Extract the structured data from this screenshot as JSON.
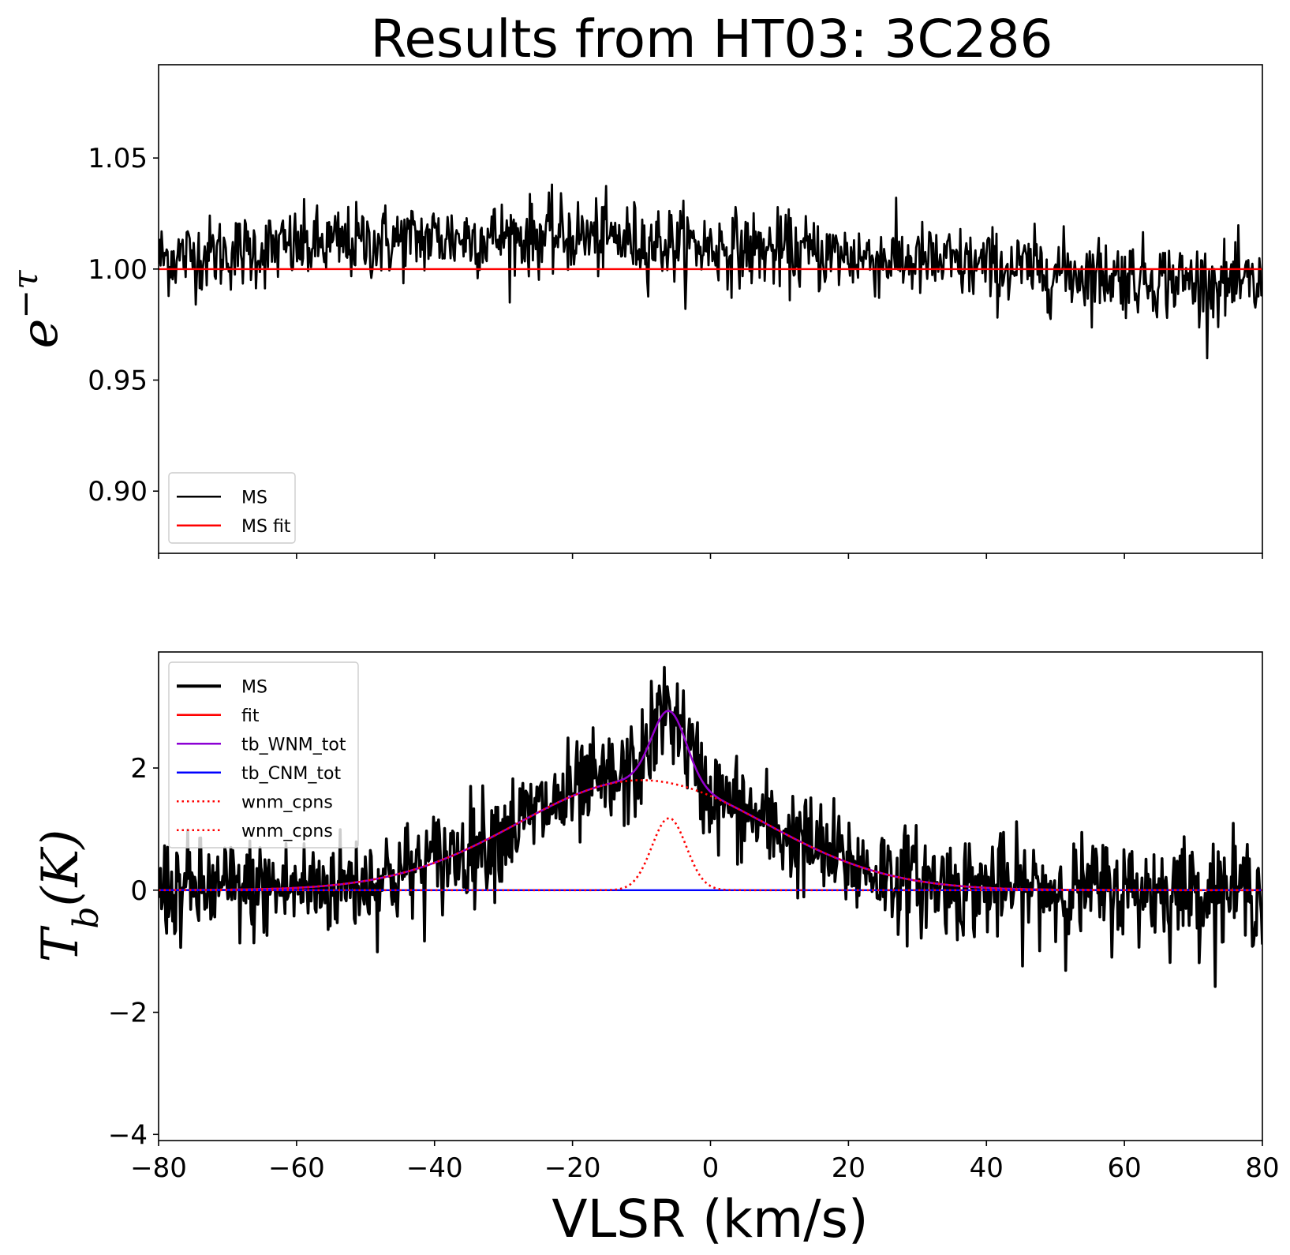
{
  "title": "Results from HT03: 3C286",
  "chart_data": [
    {
      "type": "line",
      "panel": "top",
      "ylabel": "e^{-τ}",
      "xlim": [
        -80,
        80
      ],
      "ylim": [
        0.872,
        1.092
      ],
      "yticks": [
        0.9,
        0.95,
        1.0,
        1.05
      ],
      "ytick_labels": [
        "0.90",
        "0.95",
        "1.00",
        "1.05"
      ],
      "xticks": [
        -80,
        -60,
        -40,
        -20,
        0,
        20,
        40,
        60,
        80
      ],
      "xtick_labels_shown": false,
      "legend_position": "lower-left",
      "series": [
        {
          "name": "MS",
          "color": "#000000",
          "style": "noisy",
          "trend_x": [
            -80,
            -60,
            -40,
            -20,
            0,
            20,
            40,
            60,
            80
          ],
          "trend_y": [
            1.005,
            1.01,
            1.014,
            1.015,
            1.01,
            1.006,
            1.001,
            0.997,
            0.992
          ],
          "noise_sd": 0.0085
        },
        {
          "name": "MS fit",
          "color": "#ff0000",
          "x": [
            -80,
            80
          ],
          "y": [
            1.0,
            1.0
          ]
        }
      ]
    },
    {
      "type": "line",
      "panel": "bottom",
      "ylabel": "T_b(K)",
      "xlabel": "VLSR (km/s)",
      "xlim": [
        -80,
        80
      ],
      "ylim": [
        -4.1,
        3.9
      ],
      "yticks": [
        -4,
        -2,
        0,
        2
      ],
      "ytick_labels": [
        "−4",
        "−2",
        "0",
        "2"
      ],
      "xticks": [
        -80,
        -60,
        -40,
        -20,
        0,
        20,
        40,
        60,
        80
      ],
      "xtick_labels": [
        "−80",
        "−60",
        "−40",
        "−20",
        "0",
        "20",
        "40",
        "60",
        "80"
      ],
      "legend_position": "upper-left",
      "components": {
        "broad": {
          "amplitude": 1.8,
          "center": -10,
          "sigma": 18
        },
        "narrow": {
          "amplitude": 1.18,
          "center": -6,
          "sigma": 2.5
        }
      },
      "series": [
        {
          "name": "MS",
          "color": "#000000",
          "style": "noisy",
          "model": "tb_WNM_tot",
          "noise_sd": 0.42
        },
        {
          "name": "fit",
          "color": "#ff0000",
          "model": "tb_WNM_tot"
        },
        {
          "name": "tb_WNM_tot",
          "color": "#8c00d4",
          "model": "tb_WNM_tot"
        },
        {
          "name": "tb_CNM_tot",
          "color": "#0000ff",
          "x": [
            -80,
            80
          ],
          "y": [
            0,
            0
          ]
        },
        {
          "name": "wnm_cpns",
          "color": "#ff0000",
          "dashed": true,
          "model": "broad"
        },
        {
          "name": "wnm_cpns",
          "color": "#ff0000",
          "dashed": true,
          "model": "narrow"
        }
      ]
    }
  ]
}
